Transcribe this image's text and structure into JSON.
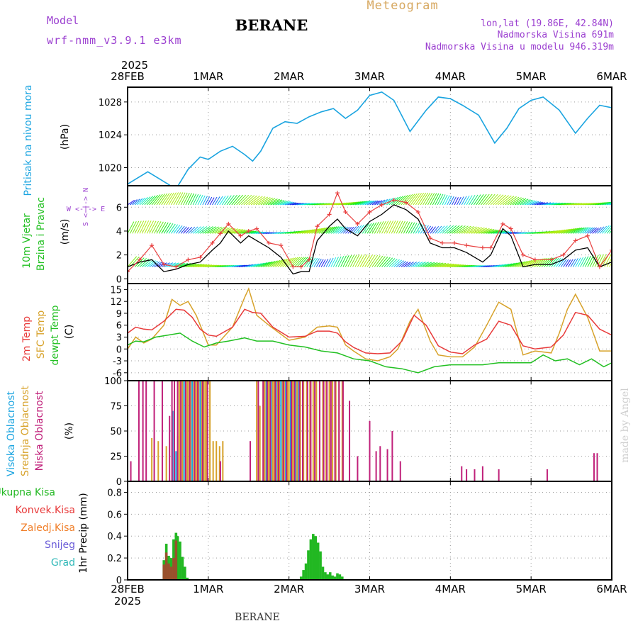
{
  "header": {
    "model_label": "Model",
    "model_value": "wrf-nmm_v3.9.1 e3km",
    "station": "BERANE",
    "meteogram": "Meteogram",
    "coords": "lon,lat (19.86E, 42.84N)",
    "elevation": "Nadmorska Visina 691m",
    "model_elevation": "Nadmorska Visina u modelu 946.319m",
    "footer_station": "BERANE",
    "watermark": "made by Angel",
    "year_top": "2025",
    "year_bottom": "2025"
  },
  "time_axis": {
    "labels": [
      "28FEB",
      "1MAR",
      "2MAR",
      "3MAR",
      "4MAR",
      "5MAR",
      "6MAR"
    ],
    "days": 6
  },
  "colors": {
    "pressure": "#1aa4e0",
    "temp2m": "#e83a3a",
    "sfc_temp": "#d7a22a",
    "dewpt": "#22c022",
    "wind_gust": "#e84040",
    "wind_speed": "#000000",
    "precip_total": "#22b822",
    "precip_conv": "#c03030",
    "precip_snow": "#6a5cd8",
    "precip_grad": "#30b8b8",
    "precip_frz": "#f07e28",
    "cloud_high": "#1aa4e0",
    "cloud_mid": "#d7a22a",
    "cloud_low": "#c0207a",
    "purple": "#9b3fd0"
  },
  "chart_data": [
    {
      "type": "line",
      "name": "pressure",
      "title": "Pritisak na nivou mora",
      "ylabel": "(hPa)",
      "ylim": [
        1017.8,
        1029.8
      ],
      "yticks": [
        1020,
        1024,
        1028
      ],
      "series": [
        {
          "name": "Pritisak na nivou mora",
          "x": [
            0,
            0.1,
            0.25,
            0.4,
            0.6,
            0.75,
            0.9,
            1.0,
            1.15,
            1.3,
            1.45,
            1.55,
            1.65,
            1.8,
            1.95,
            2.1,
            2.25,
            2.4,
            2.55,
            2.7,
            2.85,
            3.0,
            3.15,
            3.3,
            3.5,
            3.7,
            3.85,
            4.0,
            4.15,
            4.35,
            4.55,
            4.7,
            4.85,
            5.0,
            5.15,
            5.35,
            5.55,
            5.7,
            5.85,
            6.0
          ],
          "y": [
            1018.0,
            1018.6,
            1019.5,
            1018.6,
            1017.4,
            1019.8,
            1021.3,
            1021.0,
            1022.0,
            1022.6,
            1021.6,
            1020.8,
            1022.0,
            1024.8,
            1025.6,
            1025.4,
            1026.2,
            1026.8,
            1027.2,
            1026.0,
            1027.0,
            1028.8,
            1029.2,
            1028.2,
            1024.4,
            1027.0,
            1028.6,
            1028.4,
            1027.6,
            1026.4,
            1023.0,
            1024.8,
            1027.2,
            1028.2,
            1028.6,
            1027.0,
            1024.2,
            1026.0,
            1027.6,
            1027.3
          ]
        }
      ]
    },
    {
      "type": "line",
      "name": "wind",
      "title": "10m Vjetar Brzina i Pravac",
      "ylabel": "(m/s)",
      "compass": "W <-|-> E, S <-|-> N",
      "ylim": [
        -0.4,
        7.8
      ],
      "yticks": [
        0,
        2,
        4,
        6
      ],
      "series": [
        {
          "name": "Brzina (mean)",
          "x": [
            0,
            0.15,
            0.3,
            0.45,
            0.6,
            0.75,
            0.9,
            1.05,
            1.15,
            1.25,
            1.4,
            1.5,
            1.6,
            1.75,
            1.9,
            2.05,
            2.15,
            2.25,
            2.35,
            2.5,
            2.6,
            2.7,
            2.85,
            3.0,
            3.15,
            3.3,
            3.45,
            3.6,
            3.75,
            3.9,
            4.05,
            4.2,
            4.4,
            4.5,
            4.65,
            4.75,
            4.9,
            5.05,
            5.25,
            5.4,
            5.55,
            5.7,
            5.85,
            6.0
          ],
          "y": [
            1.0,
            1.4,
            1.6,
            0.6,
            0.8,
            1.2,
            1.4,
            2.4,
            3.0,
            4.0,
            3.0,
            3.6,
            3.2,
            2.6,
            1.8,
            0.4,
            0.6,
            0.6,
            3.2,
            4.4,
            5.0,
            4.2,
            3.6,
            4.8,
            5.4,
            6.2,
            5.8,
            5.0,
            3.0,
            2.6,
            2.6,
            2.2,
            1.4,
            2.0,
            4.2,
            3.6,
            1.0,
            1.2,
            1.2,
            1.6,
            2.4,
            2.6,
            1.0,
            1.4
          ]
        },
        {
          "name": "Udari (gust)",
          "x": [
            0,
            0.15,
            0.3,
            0.45,
            0.6,
            0.75,
            0.9,
            1.05,
            1.15,
            1.25,
            1.4,
            1.5,
            1.6,
            1.75,
            1.9,
            2.05,
            2.15,
            2.25,
            2.35,
            2.5,
            2.6,
            2.7,
            2.85,
            3.0,
            3.15,
            3.3,
            3.45,
            3.6,
            3.75,
            3.9,
            4.05,
            4.2,
            4.4,
            4.5,
            4.65,
            4.75,
            4.9,
            5.05,
            5.25,
            5.4,
            5.55,
            5.7,
            5.85,
            6.0
          ],
          "y": [
            0.6,
            1.6,
            2.8,
            1.2,
            1.0,
            1.6,
            1.8,
            3.0,
            3.8,
            4.6,
            3.6,
            4.0,
            4.2,
            3.0,
            2.8,
            1.0,
            1.0,
            1.6,
            4.4,
            5.4,
            7.2,
            5.6,
            4.6,
            5.6,
            6.2,
            6.6,
            6.4,
            5.6,
            3.4,
            3.0,
            3.0,
            2.8,
            2.6,
            2.6,
            4.6,
            4.2,
            2.0,
            1.6,
            1.6,
            2.0,
            3.2,
            3.6,
            1.0,
            2.4
          ]
        }
      ]
    },
    {
      "type": "line",
      "name": "temperature",
      "title_2m": "2m Temp",
      "title_sfc": "SFC Temp",
      "title_dewpt": "dewpt Temp",
      "ylabel": "(C)",
      "ylim": [
        -8,
        16.5
      ],
      "yticks": [
        -6,
        -3,
        0,
        3,
        6,
        9,
        12,
        15
      ],
      "series": [
        {
          "name": "2m Temp",
          "x": [
            0,
            0.1,
            0.2,
            0.3,
            0.45,
            0.6,
            0.7,
            0.8,
            0.9,
            1.0,
            1.1,
            1.3,
            1.45,
            1.55,
            1.65,
            1.8,
            2.0,
            2.2,
            2.35,
            2.5,
            2.6,
            2.7,
            2.8,
            2.95,
            3.1,
            3.25,
            3.4,
            3.55,
            3.7,
            3.85,
            4.0,
            4.15,
            4.3,
            4.45,
            4.6,
            4.75,
            4.9,
            5.05,
            5.25,
            5.4,
            5.55,
            5.7,
            5.85,
            6.0
          ],
          "y": [
            4.0,
            5.5,
            5.0,
            4.8,
            7.0,
            10.0,
            9.8,
            8.0,
            5.0,
            3.5,
            3.2,
            5.5,
            10.0,
            9.2,
            9.0,
            5.5,
            3.0,
            3.2,
            4.5,
            4.5,
            4.0,
            1.8,
            0.4,
            -1.0,
            -1.2,
            -1.0,
            2.0,
            8.5,
            6.0,
            0.8,
            -0.8,
            -1.2,
            1.0,
            2.5,
            7.0,
            6.0,
            0.8,
            0.0,
            0.5,
            3.5,
            9.2,
            8.5,
            5.0,
            3.5
          ]
        },
        {
          "name": "SFC Temp",
          "x": [
            0,
            0.1,
            0.2,
            0.3,
            0.45,
            0.55,
            0.65,
            0.75,
            0.85,
            1.0,
            1.1,
            1.3,
            1.45,
            1.5,
            1.6,
            1.75,
            2.0,
            2.2,
            2.35,
            2.5,
            2.6,
            2.7,
            2.8,
            2.95,
            3.1,
            3.25,
            3.35,
            3.5,
            3.6,
            3.75,
            3.85,
            4.0,
            4.15,
            4.3,
            4.45,
            4.6,
            4.75,
            4.9,
            5.05,
            5.25,
            5.35,
            5.45,
            5.55,
            5.7,
            5.85,
            6.0
          ],
          "y": [
            0.0,
            3.0,
            1.5,
            2.5,
            6.0,
            12.5,
            11.0,
            12.0,
            8.5,
            1.0,
            1.0,
            5.5,
            13.0,
            15.2,
            8.5,
            6.0,
            2.2,
            3.0,
            5.5,
            5.8,
            5.5,
            1.0,
            -0.5,
            -2.5,
            -3.0,
            -2.0,
            0.0,
            7.0,
            10.0,
            2.0,
            -1.5,
            -2.0,
            -2.0,
            0.5,
            6.0,
            11.8,
            10.0,
            -1.5,
            -0.5,
            -1.0,
            4.0,
            10.0,
            13.8,
            8.0,
            -0.5,
            -0.5
          ]
        },
        {
          "name": "dewpt Temp",
          "x": [
            0,
            0.1,
            0.2,
            0.35,
            0.5,
            0.65,
            0.8,
            0.95,
            1.1,
            1.25,
            1.45,
            1.6,
            1.8,
            2.0,
            2.2,
            2.4,
            2.6,
            2.8,
            3.0,
            3.2,
            3.4,
            3.6,
            3.8,
            4.0,
            4.2,
            4.4,
            4.6,
            4.8,
            5.0,
            5.15,
            5.3,
            5.45,
            5.6,
            5.75,
            5.9,
            6.0
          ],
          "y": [
            1.0,
            2.0,
            1.8,
            3.0,
            3.5,
            4.0,
            2.0,
            0.5,
            1.5,
            2.0,
            2.8,
            2.0,
            2.0,
            1.0,
            0.5,
            -0.5,
            -1.0,
            -2.5,
            -3.0,
            -4.5,
            -5.0,
            -6.0,
            -4.5,
            -4.0,
            -4.0,
            -4.0,
            -3.5,
            -3.5,
            -3.5,
            -1.5,
            -3.0,
            -2.5,
            -4.0,
            -2.5,
            -4.5,
            -3.5
          ]
        }
      ]
    },
    {
      "type": "bar",
      "name": "cloud",
      "title_high": "Visoka Oblacnost",
      "title_mid": "Srednja Oblacnost",
      "title_low": "Niska Oblacnost",
      "ylabel": "(%)",
      "ylim": [
        0,
        100
      ],
      "yticks": [
        0,
        25,
        50,
        75,
        100
      ],
      "series": [
        {
          "name": "Visoka Oblacnost",
          "x": [
            0.56,
            0.6,
            0.7,
            0.8,
            0.9,
            1.72,
            1.78,
            1.84,
            1.9,
            1.96,
            2.02,
            2.08,
            2.12
          ],
          "y": [
            70,
            30,
            100,
            100,
            100,
            100,
            100,
            100,
            100,
            100,
            100,
            100,
            100
          ]
        },
        {
          "name": "Srednja Oblacnost",
          "x": [
            0.3,
            0.38,
            0.48,
            0.62,
            0.64,
            0.66,
            0.68,
            0.72,
            0.74,
            0.76,
            0.78,
            0.82,
            0.84,
            0.86,
            0.88,
            0.92,
            0.94,
            0.96,
            0.98,
            1.02,
            1.06,
            1.1,
            1.14,
            1.18,
            1.6,
            1.64,
            1.68,
            1.7,
            1.74,
            1.76,
            1.8,
            1.82,
            1.86,
            1.88,
            1.92,
            1.94,
            1.98,
            2.0,
            2.04,
            2.06,
            2.1,
            2.14,
            2.18,
            2.22,
            2.26,
            2.3,
            2.34,
            2.38,
            2.42,
            2.46,
            2.5,
            2.54,
            2.58,
            2.62,
            2.66
          ],
          "y": [
            43,
            40,
            35,
            45,
            100,
            100,
            100,
            100,
            100,
            100,
            100,
            100,
            100,
            100,
            100,
            100,
            100,
            100,
            100,
            100,
            40,
            40,
            35,
            40,
            100,
            75,
            100,
            100,
            100,
            100,
            100,
            100,
            100,
            100,
            100,
            100,
            100,
            100,
            100,
            100,
            100,
            100,
            100,
            100,
            100,
            100,
            100,
            100,
            100,
            100,
            100,
            100,
            100,
            100,
            100
          ]
        },
        {
          "name": "Niska Oblacnost",
          "x": [
            0.04,
            0.14,
            0.19,
            0.23,
            0.33,
            0.43,
            0.52,
            0.55,
            0.58,
            0.62,
            0.66,
            0.72,
            0.77,
            0.83,
            0.87,
            0.93,
            0.99,
            1.15,
            1.52,
            1.62,
            1.68,
            1.73,
            1.77,
            1.83,
            1.87,
            1.93,
            1.97,
            2.03,
            2.07,
            2.13,
            2.17,
            2.23,
            2.27,
            2.32,
            2.38,
            2.43,
            2.47,
            2.52,
            2.57,
            2.62,
            2.67,
            2.75,
            2.85,
            3.0,
            3.08,
            3.13,
            3.22,
            3.28,
            3.38,
            4.14,
            4.2,
            4.3,
            4.4,
            4.6,
            5.2,
            5.78,
            5.82,
            6.0
          ],
          "y": [
            20,
            100,
            100,
            100,
            100,
            100,
            65,
            100,
            100,
            100,
            100,
            100,
            100,
            100,
            100,
            100,
            100,
            20,
            40,
            100,
            100,
            100,
            100,
            100,
            100,
            100,
            100,
            100,
            100,
            100,
            100,
            100,
            100,
            100,
            100,
            100,
            100,
            100,
            100,
            100,
            100,
            80,
            25,
            60,
            30,
            35,
            32,
            50,
            20,
            15,
            12,
            12,
            15,
            12,
            12,
            28,
            28,
            15
          ]
        }
      ]
    },
    {
      "type": "bar",
      "name": "precip",
      "ylabel": "1hr Precip (mm)",
      "legend": [
        "Ukupna Kisa",
        "Konvek.Kisa",
        "Zaledj.Kisa",
        "Snijeg",
        "Grad"
      ],
      "ylim": [
        0,
        0.9
      ],
      "yticks": [
        0,
        0.2,
        0.4,
        0.6,
        0.8
      ],
      "series": [
        {
          "name": "Ukupna Kisa",
          "x": [
            0.45,
            0.48,
            0.51,
            0.54,
            0.57,
            0.6,
            0.62,
            0.65,
            0.68,
            0.71,
            0.74,
            2.15,
            2.18,
            2.21,
            2.24,
            2.27,
            2.3,
            2.33,
            2.36,
            2.39,
            2.42,
            2.45,
            2.48,
            2.51,
            2.54,
            2.57,
            2.6,
            2.63,
            2.66
          ],
          "y": [
            0.18,
            0.33,
            0.22,
            0.2,
            0.37,
            0.43,
            0.4,
            0.35,
            0.21,
            0.12,
            0.02,
            0.03,
            0.09,
            0.15,
            0.27,
            0.37,
            0.42,
            0.4,
            0.34,
            0.26,
            0.12,
            0.07,
            0.05,
            0.07,
            0.04,
            0.03,
            0.06,
            0.05,
            0.03
          ]
        },
        {
          "name": "Konvek.Kisa",
          "x": [
            0.45,
            0.48,
            0.51,
            0.54,
            0.57,
            0.6
          ],
          "y": [
            0.14,
            0.25,
            0.15,
            0.12,
            0.2,
            0.36
          ]
        }
      ]
    }
  ]
}
